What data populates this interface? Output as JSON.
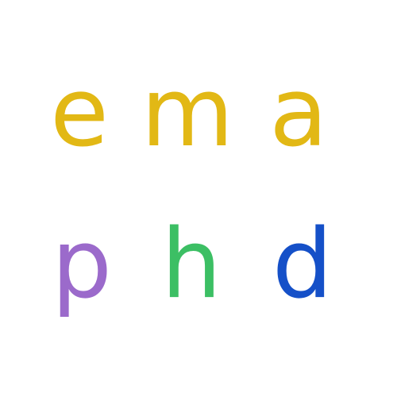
{
  "logo": {
    "row1": [
      "e",
      "m",
      "a"
    ],
    "row2": [
      "p",
      "h",
      "d"
    ]
  },
  "colors": {
    "gold": "#E2B815",
    "purple": "#9B6ACB",
    "green": "#3CBF64",
    "blue": "#1550C8"
  }
}
